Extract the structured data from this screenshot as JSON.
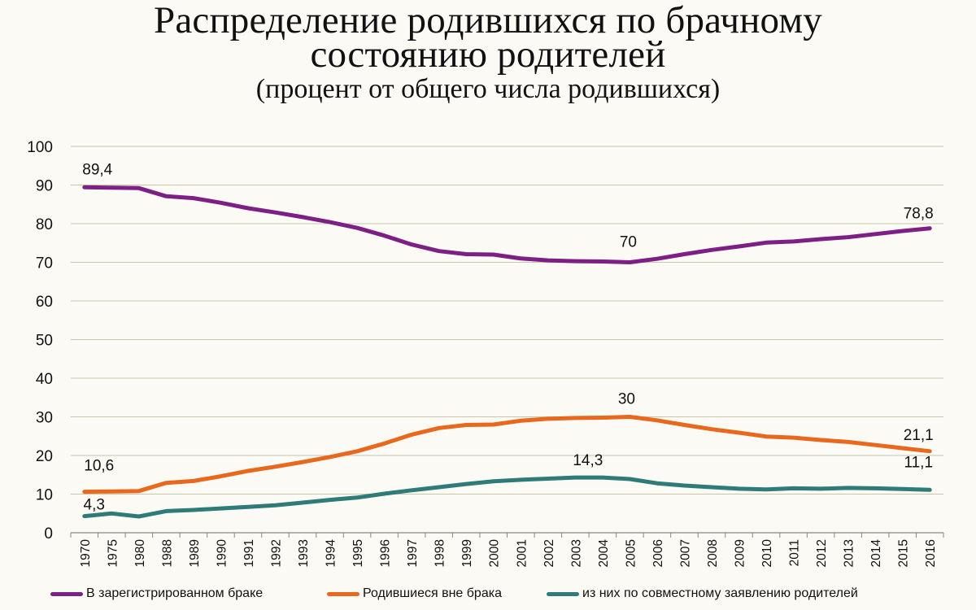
{
  "title_line1": "Распределение родившихся по брачному",
  "title_line2": "состоянию родителей",
  "subtitle": "(процент от общего числа родившихся)",
  "colors": {
    "married": "#7e1f86",
    "out_of_wedlock": "#e8681d",
    "joint": "#2e7b78",
    "grid": "#c9c6a8",
    "background": "#fbfaf5"
  },
  "chart_data": {
    "type": "line",
    "x": [
      "1970",
      "1975",
      "1980",
      "1988",
      "1989",
      "1990",
      "1991",
      "1992",
      "1993",
      "1994",
      "1995",
      "1996",
      "1997",
      "1998",
      "1999",
      "2000",
      "2001",
      "2002",
      "2003",
      "2004",
      "2005",
      "2006",
      "2007",
      "2008",
      "2009",
      "2010",
      "2011",
      "2012",
      "2013",
      "2014",
      "2015",
      "2016"
    ],
    "ylim": [
      0,
      100
    ],
    "yticks": [
      0,
      10,
      20,
      30,
      40,
      50,
      60,
      70,
      80,
      90,
      100
    ],
    "grid": true,
    "legend_position": "bottom",
    "series": [
      {
        "name": "В зарегистрированном браке",
        "color": "#7e1f86",
        "values": [
          89.4,
          89.3,
          89.2,
          87.1,
          86.6,
          85.4,
          84.0,
          82.9,
          81.7,
          80.4,
          78.9,
          76.9,
          74.6,
          72.9,
          72.1,
          72.0,
          71.0,
          70.5,
          70.3,
          70.2,
          70.0,
          70.9,
          72.1,
          73.2,
          74.1,
          75.1,
          75.4,
          76.0,
          76.5,
          77.3,
          78.1,
          78.8
        ]
      },
      {
        "name": "Родившиеся вне брака",
        "color": "#e8681d",
        "values": [
          10.6,
          10.7,
          10.8,
          12.9,
          13.4,
          14.6,
          16.0,
          17.1,
          18.3,
          19.6,
          21.1,
          23.1,
          25.4,
          27.1,
          27.9,
          28.0,
          29.0,
          29.5,
          29.7,
          29.8,
          30.0,
          29.1,
          27.9,
          26.8,
          25.9,
          24.9,
          24.6,
          24.0,
          23.5,
          22.7,
          21.9,
          21.1
        ]
      },
      {
        "name": "из них по совместному заявлению родителей",
        "color": "#2e7b78",
        "values": [
          4.3,
          5.0,
          4.2,
          5.6,
          5.9,
          6.3,
          6.7,
          7.1,
          7.8,
          8.5,
          9.1,
          10.1,
          11.0,
          11.8,
          12.6,
          13.3,
          13.7,
          14.0,
          14.3,
          14.3,
          13.9,
          12.8,
          12.2,
          11.8,
          11.4,
          11.2,
          11.5,
          11.4,
          11.6,
          11.5,
          11.3,
          11.1
        ]
      }
    ],
    "annotations": [
      {
        "series": 0,
        "x": "1970",
        "text": "89,4"
      },
      {
        "series": 0,
        "x": "2005",
        "text": "70"
      },
      {
        "series": 0,
        "x": "2016",
        "text": "78,8"
      },
      {
        "series": 1,
        "x": "1970",
        "text": "10,6"
      },
      {
        "series": 1,
        "x": "2005",
        "text": "30"
      },
      {
        "series": 1,
        "x": "2016",
        "text": "21,1"
      },
      {
        "series": 2,
        "x": "1970",
        "text": "4,3"
      },
      {
        "series": 2,
        "x": "2004",
        "text": "14,3"
      },
      {
        "series": 2,
        "x": "2016",
        "text": "11,1"
      }
    ]
  }
}
